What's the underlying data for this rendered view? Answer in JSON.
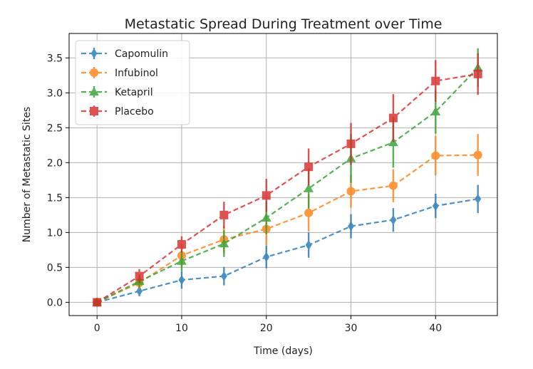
{
  "chart_data": {
    "type": "line",
    "title": "Metastatic Spread During Treatment over Time",
    "xlabel": "Time (days)",
    "ylabel": "Number of Metastatic Sites",
    "xlim": [
      -3.3,
      47.3
    ],
    "ylim": [
      -0.19,
      3.85
    ],
    "xticks": [
      0,
      10,
      20,
      30,
      40
    ],
    "yticks": [
      0.0,
      0.5,
      1.0,
      1.5,
      2.0,
      2.5,
      3.0,
      3.5
    ],
    "xtick_labels": [
      "0",
      "10",
      "20",
      "30",
      "40"
    ],
    "ytick_labels": [
      "0.0",
      "0.5",
      "1.0",
      "1.5",
      "2.0",
      "2.5",
      "3.0",
      "3.5"
    ],
    "grid": true,
    "legend_position": "upper-left",
    "x": [
      0,
      5,
      10,
      15,
      20,
      25,
      30,
      35,
      40,
      45
    ],
    "series": [
      {
        "name": "Capomulin",
        "color": "#1f77b4",
        "marker": "diamond",
        "values": [
          0.0,
          0.16,
          0.32,
          0.375,
          0.65,
          0.82,
          1.09,
          1.18,
          1.38,
          1.48
        ],
        "errors": [
          0.0,
          0.074,
          0.125,
          0.132,
          0.162,
          0.181,
          0.172,
          0.169,
          0.175,
          0.202
        ]
      },
      {
        "name": "Infubinol",
        "color": "#ff7f0e",
        "marker": "circle",
        "values": [
          0.0,
          0.28,
          0.67,
          0.9,
          1.05,
          1.28,
          1.59,
          1.67,
          2.1,
          2.11
        ],
        "errors": [
          0.0,
          0.091,
          0.159,
          0.194,
          0.234,
          0.265,
          0.234,
          0.236,
          0.283,
          0.3
        ]
      },
      {
        "name": "Ketapril",
        "color": "#2ca02c",
        "marker": "triangle",
        "values": [
          0.0,
          0.3,
          0.59,
          0.84,
          1.21,
          1.63,
          2.06,
          2.29,
          2.73,
          3.36
        ],
        "errors": [
          0.0,
          0.098,
          0.142,
          0.191,
          0.236,
          0.288,
          0.348,
          0.362,
          0.315,
          0.278
        ]
      },
      {
        "name": "Placebo",
        "color": "#d62728",
        "marker": "square",
        "values": [
          0.0,
          0.375,
          0.83,
          1.25,
          1.53,
          1.94,
          2.27,
          2.64,
          3.17,
          3.27
        ],
        "errors": [
          0.0,
          0.1,
          0.115,
          0.19,
          0.237,
          0.263,
          0.3,
          0.341,
          0.3,
          0.3
        ]
      }
    ]
  }
}
